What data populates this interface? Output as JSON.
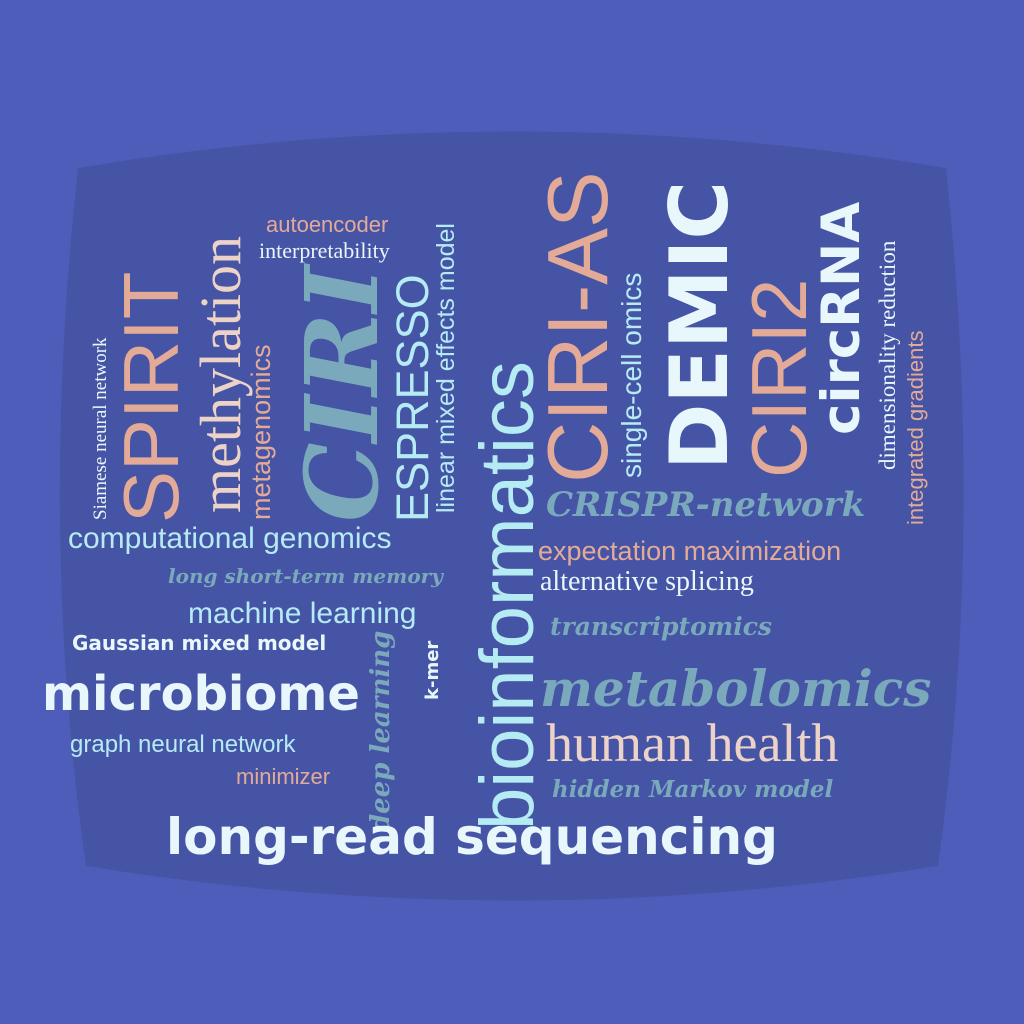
{
  "colors": {
    "background": "#4f5dba",
    "panel": "#4654a6",
    "peach": "#e3aa98",
    "cyan": "#b5ebf3",
    "teal": "#7aa9bc",
    "white": "#e8f7fb",
    "light_peach": "#ecd2c7"
  },
  "words": {
    "ciri_as": "CIRI-AS",
    "bioinformatics": "bioinformatics",
    "ciri": "CIRI",
    "demic": "DEMIC",
    "ciri2": "CIRI2",
    "spirit": "SPIRIT",
    "methylation": "methylation",
    "espresso": "ESPRESSO",
    "circrna": "circRNA",
    "metabolomics": "metabolomics",
    "long_read_sequencing": "long-read sequencing",
    "microbiome": "microbiome",
    "human_health": "human health",
    "crispr_network": "CRISPR-network",
    "computational_genomics": "computational genomics",
    "expectation_maximization": "expectation maximization",
    "machine_learning": "machine learning",
    "alternative_splicing": "alternative splicing",
    "single_cell_omics": "single-cell omics",
    "deep_learning": "deep learning",
    "metagenomics": "metagenomics",
    "linear_mixed_effects_model": "linear mixed effects model",
    "transcriptomics": "transcriptomics",
    "long_short_term_memory": "long short-term memory",
    "gaussian_mixed_model": "Gaussian mixed model",
    "graph_neural_network": "graph neural network",
    "hidden_markov_model": "hidden Markov model",
    "autoencoder": "autoencoder",
    "interpretability": "interpretability",
    "siamese_neural_network": "Siamese neural network",
    "dimensionality_reduction": "dimensionality reduction",
    "integrated_gradients": "integrated gradients",
    "minimizer": "minimizer",
    "k_mer": "k-mer"
  }
}
